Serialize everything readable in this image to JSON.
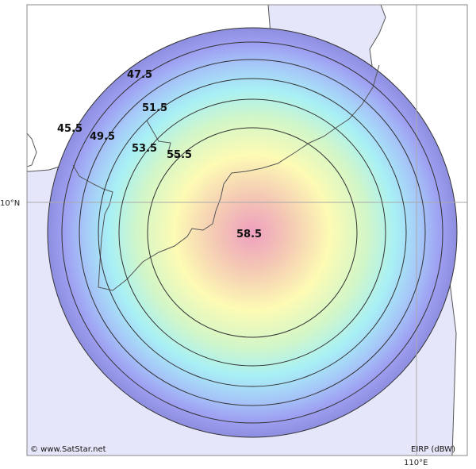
{
  "map": {
    "axis_labels": {
      "latitude": "10°N",
      "longitude": "110°E"
    },
    "credit": "© www.SatStar.net",
    "unit_label": "EIRP (dBW)",
    "peak_label": "58.5",
    "contour_labels": [
      "45.5",
      "47.5",
      "49.5",
      "51.5",
      "53.5",
      "55.5"
    ],
    "colors": {
      "sea": "#e6e6fb",
      "land": "#ffffff",
      "coastline": "#555555",
      "gridline": "#aaaaaa",
      "contour_line": "#333333",
      "beam_center": "#f2a6c0",
      "beam_mid": "#fdfbb0",
      "beam_edge": "#9b9bf0"
    }
  }
}
